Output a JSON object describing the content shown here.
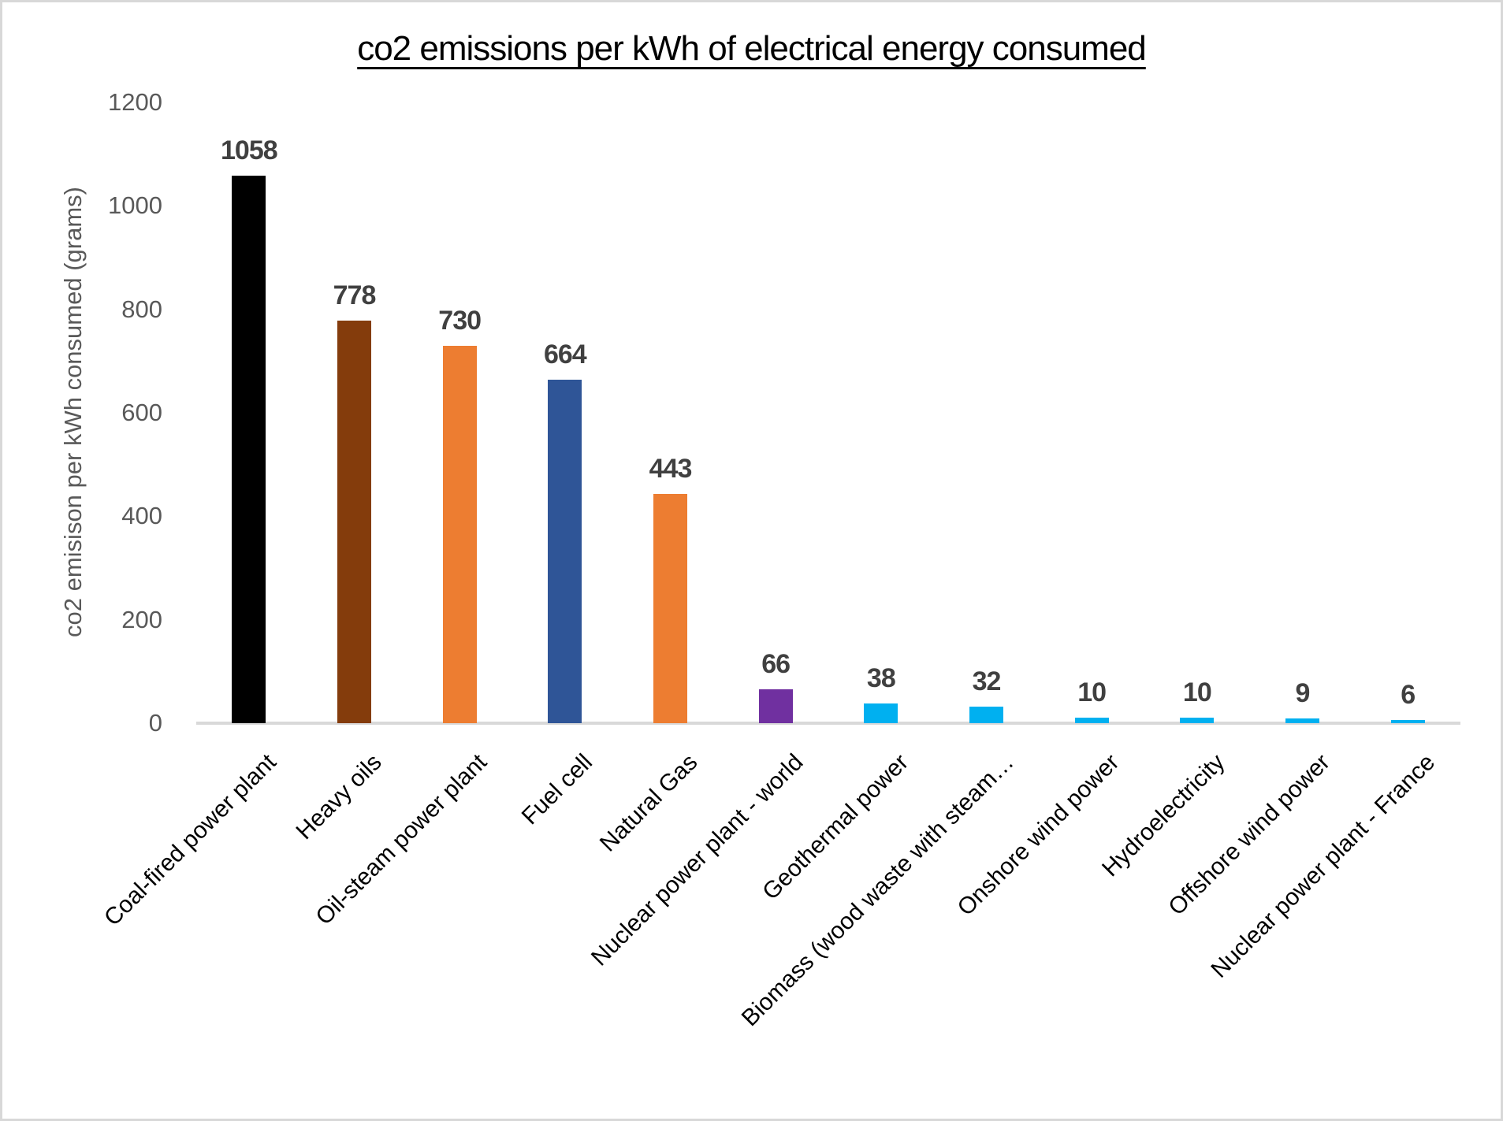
{
  "title": "co2 emissions per kWh of electrical energy consumed",
  "chart_data": {
    "type": "bar",
    "title": "co2 emissions per kWh of electrical energy consumed",
    "xlabel": "",
    "ylabel": "co2 emisison per kWh consumed (grams)",
    "categories": [
      "Coal-fired power plant",
      "Heavy oils",
      "Oil-steam power plant",
      "Fuel cell",
      "Natural Gas",
      "Nuclear power plant - world",
      "Geothermal power",
      "Biomass (wood waste with steam…",
      "Onshore wind power",
      "Hydroelectricity",
      "Offshore wind power",
      "Nuclear power plant - France"
    ],
    "values": [
      1058,
      778,
      730,
      664,
      443,
      66,
      38,
      32,
      10,
      10,
      9,
      6
    ],
    "data_labels": [
      "1058",
      "778",
      "730",
      "664",
      "443",
      "66",
      "38",
      "32",
      "10",
      "10",
      "9",
      "6"
    ],
    "bar_colors": [
      "#000000",
      "#843C0C",
      "#ED7D31",
      "#2F5597",
      "#ED7D31",
      "#7030A0",
      "#00B0F0",
      "#00B0F0",
      "#00B0F0",
      "#00B0F0",
      "#00B0F0",
      "#00B0F0"
    ],
    "ylim": [
      0,
      1200
    ],
    "yticks": [
      0,
      200,
      400,
      600,
      800,
      1000,
      1200
    ],
    "grid": false,
    "legend": "none",
    "colors": {
      "axis_line": "#d9d9d9",
      "tick_label": "#595959",
      "value_label": "#404040",
      "category_label": "#000000",
      "title": "#000000"
    }
  }
}
